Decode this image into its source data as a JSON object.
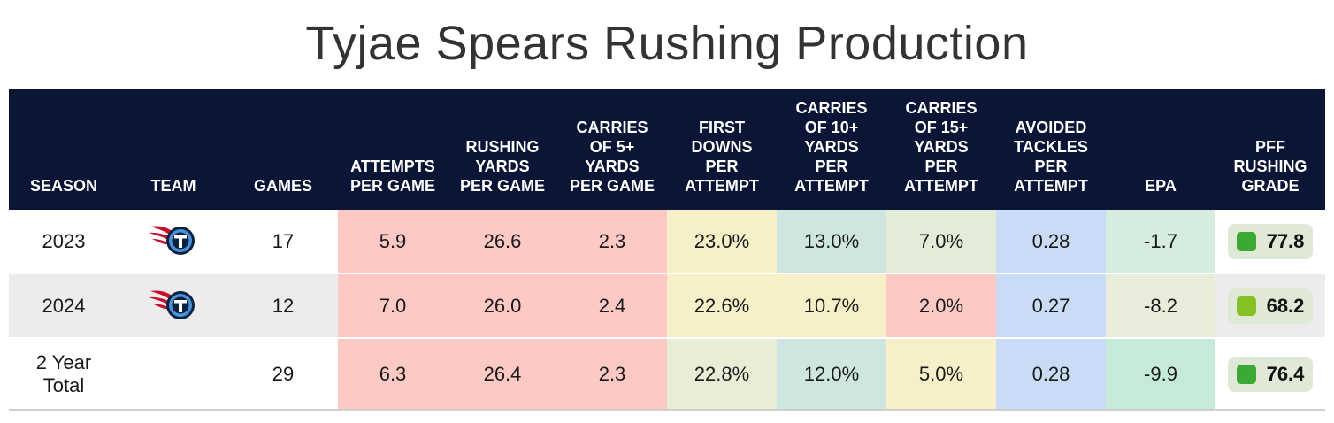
{
  "title": "Tyjae Spears Rushing Production",
  "columns": {
    "season": "SEASON",
    "team": "TEAM",
    "games": "GAMES",
    "att_pg": "ATTEMPTS PER GAME",
    "yds_pg": "RUSHING YARDS PER GAME",
    "c5_pg": "CARRIES OF 5+ YARDS PER GAME",
    "fd_pa": "FIRST DOWNS PER ATTEMPT",
    "c10_pa": "CARRIES OF 10+ YARDS PER ATTEMPT",
    "c15_pa": "CARRIES OF 15+ YARDS PER ATTEMPT",
    "at_pa": "AVOIDED TACKLES PER ATTEMPT",
    "epa": "EPA",
    "grade": "PFF RUSHING GRADE"
  },
  "rows": [
    {
      "season": "2023",
      "team_icon": "titans-logo-icon",
      "games": "17",
      "att_pg": "5.9",
      "yds_pg": "26.6",
      "c5_pg": "2.3",
      "fd_pa": "23.0%",
      "c10_pa": "13.0%",
      "c15_pa": "7.0%",
      "at_pa": "0.28",
      "epa": "-1.7",
      "grade": "77.8",
      "colors": {
        "att_pg": "#fcc9c4",
        "yds_pg": "#fcc9c4",
        "c5_pg": "#fcc9c4",
        "fd_pa": "#f6efc8",
        "c10_pa": "#cfe6e0",
        "c15_pa": "#e3ecd8",
        "at_pa": "#cadbf6",
        "epa": "#d6ece0",
        "grade_dot": "#3ca934"
      }
    },
    {
      "season": "2024",
      "team_icon": "titans-logo-icon",
      "games": "12",
      "att_pg": "7.0",
      "yds_pg": "26.0",
      "c5_pg": "2.4",
      "fd_pa": "22.6%",
      "c10_pa": "10.7%",
      "c15_pa": "2.0%",
      "at_pa": "0.27",
      "epa": "-8.2",
      "grade": "68.2",
      "colors": {
        "att_pg": "#fcc9c4",
        "yds_pg": "#fcc9c4",
        "c5_pg": "#fcc9c4",
        "fd_pa": "#f6efc8",
        "c10_pa": "#f6efc8",
        "c15_pa": "#fcc9c4",
        "at_pa": "#cadbf6",
        "epa": "#e8ecd8",
        "grade_dot": "#85c025"
      }
    },
    {
      "season": "2 Year Total",
      "team_icon": "",
      "games": "29",
      "att_pg": "6.3",
      "yds_pg": "26.4",
      "c5_pg": "2.3",
      "fd_pa": "22.8%",
      "c10_pa": "12.0%",
      "c15_pa": "5.0%",
      "at_pa": "0.28",
      "epa": "-9.9",
      "grade": "76.4",
      "colors": {
        "att_pg": "#fcc9c4",
        "yds_pg": "#fcc9c4",
        "c5_pg": "#fcc9c4",
        "fd_pa": "#e8edd6",
        "c10_pa": "#cfe6e0",
        "c15_pa": "#f6efc8",
        "at_pa": "#cadbf6",
        "epa": "#c6ead8",
        "grade_dot": "#3ca934"
      }
    }
  ],
  "colors": {
    "header_bg": "#0b1535",
    "alt_row_bg": "#ececec"
  }
}
